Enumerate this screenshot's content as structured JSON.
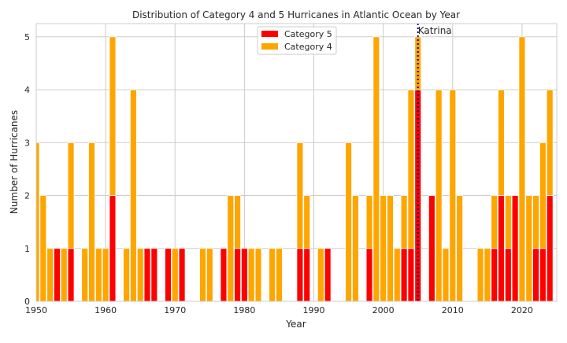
{
  "chart_data": {
    "type": "bar",
    "stacked": true,
    "title": "Distribution of Category 4 and 5 Hurricanes in Atlantic Ocean by Year",
    "xlabel": "Year",
    "ylabel": "Number of Hurricanes",
    "xlim": [
      1950,
      2025
    ],
    "ylim": [
      0,
      5.25
    ],
    "xticks": [
      1950,
      1960,
      1970,
      1980,
      1990,
      2000,
      2010,
      2020
    ],
    "yticks": [
      0,
      1,
      2,
      3,
      4,
      5
    ],
    "grid": true,
    "legend_position": "top-center",
    "x": [
      1950,
      1951,
      1952,
      1953,
      1954,
      1955,
      1956,
      1957,
      1958,
      1959,
      1960,
      1961,
      1962,
      1963,
      1964,
      1965,
      1966,
      1967,
      1968,
      1969,
      1970,
      1971,
      1972,
      1973,
      1974,
      1975,
      1976,
      1977,
      1978,
      1979,
      1980,
      1981,
      1982,
      1983,
      1984,
      1985,
      1986,
      1987,
      1988,
      1989,
      1990,
      1991,
      1992,
      1993,
      1994,
      1995,
      1996,
      1997,
      1998,
      1999,
      2000,
      2001,
      2002,
      2003,
      2004,
      2005,
      2006,
      2007,
      2008,
      2009,
      2010,
      2011,
      2012,
      2013,
      2014,
      2015,
      2016,
      2017,
      2018,
      2019,
      2020,
      2021,
      2022,
      2023,
      2024
    ],
    "series": [
      {
        "name": "Category 5",
        "color": "#ff0000",
        "values": [
          0,
          0,
          0,
          1,
          0,
          1,
          0,
          0,
          0,
          0,
          0,
          2,
          0,
          0,
          0,
          0,
          1,
          1,
          0,
          1,
          0,
          1,
          0,
          0,
          0,
          0,
          0,
          1,
          0,
          1,
          1,
          0,
          0,
          0,
          0,
          0,
          0,
          0,
          1,
          1,
          0,
          0,
          1,
          0,
          0,
          0,
          0,
          0,
          1,
          0,
          0,
          0,
          0,
          1,
          1,
          4,
          0,
          2,
          0,
          0,
          0,
          0,
          0,
          0,
          0,
          0,
          1,
          2,
          1,
          2,
          0,
          0,
          1,
          1,
          2
        ]
      },
      {
        "name": "Category 4",
        "color": "#ffa500",
        "values": [
          3,
          2,
          1,
          0,
          1,
          2,
          0,
          1,
          3,
          1,
          1,
          3,
          0,
          1,
          4,
          1,
          0,
          0,
          0,
          0,
          1,
          0,
          0,
          0,
          1,
          1,
          0,
          0,
          2,
          1,
          0,
          1,
          1,
          0,
          1,
          1,
          0,
          0,
          2,
          1,
          0,
          1,
          0,
          0,
          0,
          3,
          2,
          0,
          1,
          5,
          2,
          2,
          1,
          1,
          3,
          1,
          0,
          0,
          4,
          1,
          4,
          2,
          0,
          0,
          1,
          1,
          1,
          2,
          1,
          0,
          5,
          2,
          1,
          2,
          2
        ]
      }
    ],
    "annotations": [
      {
        "x": 2005,
        "text": "Katrina",
        "line_color": "#00008b",
        "line_style": "dotted"
      }
    ]
  }
}
